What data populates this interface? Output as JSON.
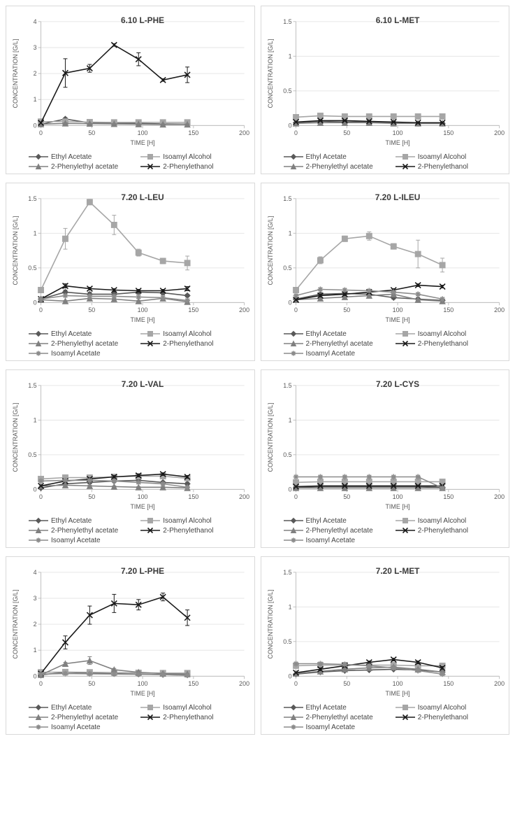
{
  "global": {
    "xlabel": "TIME [H]",
    "ylabel": "CONCENTRATION [G/L]",
    "label_fontsize": 9,
    "title_fontsize": 12,
    "title_weight": "bold",
    "tick_fontsize": 9,
    "background_color": "#ffffff",
    "border_color": "#d9d9d9",
    "axis_color": "#bfbfbf",
    "grid_color": "#e6e6e6",
    "text_color": "#595959",
    "xlim": [
      0,
      200
    ],
    "xtick_step": 50,
    "line_width": 1.6,
    "marker_size": 4,
    "legend_fontsize": 10
  },
  "series_defs": {
    "ethyl_acetate": {
      "label": "Ethyl Acetate",
      "color": "#595959",
      "marker": "diamond"
    },
    "isoamyl_alcohol": {
      "label": "Isoamyl Alcohol",
      "color": "#a6a6a6",
      "marker": "square"
    },
    "phenylethyl_acetate": {
      "label": "2-Phenylethyl acetate",
      "color": "#808080",
      "marker": "triangle"
    },
    "phenylethanol": {
      "label": "2-Phenylethanol",
      "color": "#1a1a1a",
      "marker": "x"
    },
    "isoamyl_acetate": {
      "label": "Isoamyl Acetate",
      "color": "#8c8c8c",
      "marker": "star"
    }
  },
  "charts": [
    {
      "id": "p610_phe",
      "title": "6.10 L-PHE",
      "ylim": [
        0,
        4
      ],
      "ytick_step": 1,
      "x": [
        0,
        24,
        48,
        72,
        96,
        120,
        144
      ],
      "series": [
        {
          "def": "ethyl_acetate",
          "y": [
            0.05,
            0.25,
            0.1,
            0.1,
            0.08,
            0.06,
            0.05
          ],
          "err": [
            0,
            0.05,
            0.03,
            0.02,
            0.02,
            0.02,
            0.02
          ]
        },
        {
          "def": "isoamyl_alcohol",
          "y": [
            0.15,
            0.15,
            0.13,
            0.12,
            0.12,
            0.12,
            0.12
          ],
          "err": [
            0,
            0.02,
            0.02,
            0.02,
            0.02,
            0.02,
            0.02
          ]
        },
        {
          "def": "phenylethyl_acetate",
          "y": [
            0.05,
            0.08,
            0.07,
            0.06,
            0.05,
            0.04,
            0.04
          ],
          "err": [
            0,
            0.02,
            0.02,
            0.02,
            0.02,
            0.02,
            0.02
          ]
        },
        {
          "def": "phenylethanol",
          "y": [
            0.1,
            2.02,
            2.2,
            3.1,
            2.55,
            1.75,
            1.95
          ],
          "err": [
            0,
            0.55,
            0.15,
            0.05,
            0.25,
            0.05,
            0.3
          ]
        }
      ],
      "legend_order": [
        "ethyl_acetate",
        "isoamyl_alcohol",
        "phenylethyl_acetate",
        "phenylethanol"
      ]
    },
    {
      "id": "p610_met",
      "title": "6.10 L-MET",
      "ylim": [
        0,
        1.5
      ],
      "ytick_step": 0.5,
      "x": [
        0,
        24,
        48,
        72,
        96,
        120,
        144
      ],
      "series": [
        {
          "def": "ethyl_acetate",
          "y": [
            0.04,
            0.06,
            0.05,
            0.05,
            0.04,
            0.03,
            0.03
          ],
          "err": [
            0,
            0.01,
            0.01,
            0.01,
            0.01,
            0.01,
            0.01
          ]
        },
        {
          "def": "isoamyl_alcohol",
          "y": [
            0.12,
            0.14,
            0.13,
            0.13,
            0.13,
            0.13,
            0.13
          ],
          "err": [
            0,
            0.02,
            0.02,
            0.02,
            0.02,
            0.02,
            0.02
          ]
        },
        {
          "def": "phenylethyl_acetate",
          "y": [
            0.03,
            0.04,
            0.04,
            0.04,
            0.03,
            0.03,
            0.03
          ],
          "err": [
            0,
            0.01,
            0.01,
            0.01,
            0.01,
            0.01,
            0.01
          ]
        },
        {
          "def": "phenylethanol",
          "y": [
            0.05,
            0.07,
            0.07,
            0.06,
            0.05,
            0.04,
            0.04
          ],
          "err": [
            0,
            0.01,
            0.01,
            0.01,
            0.01,
            0.01,
            0.01
          ]
        }
      ],
      "legend_order": [
        "ethyl_acetate",
        "isoamyl_alcohol",
        "phenylethyl_acetate",
        "phenylethanol"
      ]
    },
    {
      "id": "p720_leu",
      "title": "7.20 L-LEU",
      "ylim": [
        0,
        1.5
      ],
      "ytick_step": 0.5,
      "x": [
        0,
        24,
        48,
        72,
        96,
        120,
        144
      ],
      "series": [
        {
          "def": "ethyl_acetate",
          "y": [
            0.05,
            0.15,
            0.12,
            0.12,
            0.15,
            0.14,
            0.1
          ],
          "err": [
            0,
            0.03,
            0.03,
            0.03,
            0.03,
            0.03,
            0.02
          ]
        },
        {
          "def": "isoamyl_alcohol",
          "y": [
            0.18,
            0.92,
            1.45,
            1.12,
            0.72,
            0.6,
            0.57
          ],
          "err": [
            0,
            0.15,
            0.04,
            0.14,
            0.05,
            0.04,
            0.1
          ]
        },
        {
          "def": "phenylethyl_acetate",
          "y": [
            0.04,
            0.02,
            0.06,
            0.05,
            0.02,
            0.06,
            0.01
          ],
          "err": [
            0,
            0.01,
            0.01,
            0.01,
            0.01,
            0.01,
            0.01
          ]
        },
        {
          "def": "phenylethanol",
          "y": [
            0.05,
            0.24,
            0.2,
            0.18,
            0.17,
            0.17,
            0.2
          ],
          "err": [
            0,
            0.03,
            0.02,
            0.02,
            0.02,
            0.02,
            0.03
          ]
        },
        {
          "def": "isoamyl_acetate",
          "y": [
            0.05,
            0.1,
            0.09,
            0.09,
            0.08,
            0.07,
            0.03
          ],
          "err": [
            0,
            0.02,
            0.02,
            0.02,
            0.02,
            0.02,
            0.02
          ]
        }
      ],
      "legend_order": [
        "ethyl_acetate",
        "isoamyl_alcohol",
        "phenylethyl_acetate",
        "phenylethanol",
        "isoamyl_acetate"
      ]
    },
    {
      "id": "p720_ileu",
      "title": "7.20 L-ILEU",
      "ylim": [
        0,
        1.5
      ],
      "ytick_step": 0.5,
      "x": [
        0,
        24,
        48,
        72,
        96,
        120,
        144
      ],
      "series": [
        {
          "def": "ethyl_acetate",
          "y": [
            0.05,
            0.12,
            0.13,
            0.12,
            0.07,
            0.05,
            0.03
          ],
          "err": [
            0,
            0.02,
            0.02,
            0.02,
            0.02,
            0.02,
            0.01
          ]
        },
        {
          "def": "isoamyl_alcohol",
          "y": [
            0.18,
            0.61,
            0.92,
            0.96,
            0.81,
            0.7,
            0.54
          ],
          "err": [
            0,
            0.05,
            0.04,
            0.06,
            0.04,
            0.2,
            0.1
          ]
        },
        {
          "def": "phenylethyl_acetate",
          "y": [
            0.04,
            0.06,
            0.08,
            0.1,
            0.12,
            0.04,
            0.02
          ],
          "err": [
            0,
            0.01,
            0.01,
            0.01,
            0.01,
            0.01,
            0.01
          ]
        },
        {
          "def": "phenylethanol",
          "y": [
            0.04,
            0.1,
            0.12,
            0.15,
            0.18,
            0.25,
            0.23
          ],
          "err": [
            0,
            0.02,
            0.02,
            0.02,
            0.02,
            0.02,
            0.02
          ]
        },
        {
          "def": "isoamyl_acetate",
          "y": [
            0.1,
            0.19,
            0.18,
            0.17,
            0.15,
            0.12,
            0.05
          ],
          "err": [
            0,
            0.02,
            0.02,
            0.02,
            0.02,
            0.02,
            0.02
          ]
        }
      ],
      "legend_order": [
        "ethyl_acetate",
        "isoamyl_alcohol",
        "phenylethyl_acetate",
        "phenylethanol",
        "isoamyl_acetate"
      ]
    },
    {
      "id": "p720_val",
      "title": "7.20 L-VAL",
      "ylim": [
        0,
        1.5
      ],
      "ytick_step": 0.5,
      "x": [
        0,
        24,
        48,
        72,
        96,
        120,
        144
      ],
      "series": [
        {
          "def": "ethyl_acetate",
          "y": [
            0.02,
            0.08,
            0.1,
            0.12,
            0.13,
            0.1,
            0.08
          ],
          "err": [
            0,
            0.02,
            0.02,
            0.02,
            0.02,
            0.02,
            0.02
          ]
        },
        {
          "def": "isoamyl_alcohol",
          "y": [
            0.15,
            0.17,
            0.17,
            0.18,
            0.19,
            0.19,
            0.16
          ],
          "err": [
            0,
            0.02,
            0.02,
            0.02,
            0.02,
            0.02,
            0.02
          ]
        },
        {
          "def": "phenylethyl_acetate",
          "y": [
            0.05,
            0.06,
            0.05,
            0.04,
            0.03,
            0.03,
            0.02
          ],
          "err": [
            0,
            0.01,
            0.01,
            0.01,
            0.01,
            0.01,
            0.01
          ]
        },
        {
          "def": "phenylethanol",
          "y": [
            0.05,
            0.12,
            0.15,
            0.18,
            0.2,
            0.22,
            0.18
          ],
          "err": [
            0,
            0.02,
            0.02,
            0.02,
            0.02,
            0.02,
            0.02
          ]
        },
        {
          "def": "isoamyl_acetate",
          "y": [
            0.12,
            0.13,
            0.13,
            0.12,
            0.1,
            0.08,
            0.03
          ],
          "err": [
            0,
            0.01,
            0.01,
            0.01,
            0.01,
            0.01,
            0.01
          ]
        }
      ],
      "legend_order": [
        "ethyl_acetate",
        "isoamyl_alcohol",
        "phenylethyl_acetate",
        "phenylethanol",
        "isoamyl_acetate"
      ]
    },
    {
      "id": "p720_cys",
      "title": "7.20 L-CYS",
      "ylim": [
        0,
        1.5
      ],
      "ytick_step": 0.5,
      "x": [
        0,
        24,
        48,
        72,
        96,
        120,
        144
      ],
      "series": [
        {
          "def": "ethyl_acetate",
          "y": [
            0.03,
            0.04,
            0.04,
            0.04,
            0.04,
            0.04,
            0.03
          ],
          "err": [
            0,
            0.01,
            0.01,
            0.01,
            0.01,
            0.01,
            0.01
          ]
        },
        {
          "def": "isoamyl_alcohol",
          "y": [
            0.1,
            0.11,
            0.11,
            0.11,
            0.11,
            0.11,
            0.11
          ],
          "err": [
            0,
            0.01,
            0.01,
            0.01,
            0.01,
            0.01,
            0.01
          ]
        },
        {
          "def": "phenylethyl_acetate",
          "y": [
            0.02,
            0.02,
            0.02,
            0.02,
            0.02,
            0.02,
            0.02
          ],
          "err": [
            0,
            0.01,
            0.01,
            0.01,
            0.01,
            0.01,
            0.01
          ]
        },
        {
          "def": "phenylethanol",
          "y": [
            0.04,
            0.05,
            0.05,
            0.05,
            0.05,
            0.05,
            0.05
          ],
          "err": [
            0,
            0.01,
            0.01,
            0.01,
            0.01,
            0.01,
            0.01
          ]
        },
        {
          "def": "isoamyl_acetate",
          "y": [
            0.18,
            0.18,
            0.18,
            0.18,
            0.18,
            0.18,
            0.02
          ],
          "err": [
            0,
            0.01,
            0.01,
            0.01,
            0.01,
            0.01,
            0.01
          ]
        }
      ],
      "legend_order": [
        "ethyl_acetate",
        "isoamyl_alcohol",
        "phenylethyl_acetate",
        "phenylethanol",
        "isoamyl_acetate"
      ]
    },
    {
      "id": "p720_phe",
      "title": "7.20 L-PHE",
      "ylim": [
        0,
        4
      ],
      "ytick_step": 1,
      "x": [
        0,
        24,
        48,
        72,
        96,
        120,
        144
      ],
      "series": [
        {
          "def": "ethyl_acetate",
          "y": [
            0.05,
            0.15,
            0.12,
            0.1,
            0.08,
            0.06,
            0.05
          ],
          "err": [
            0,
            0.02,
            0.02,
            0.02,
            0.02,
            0.02,
            0.02
          ]
        },
        {
          "def": "isoamyl_alcohol",
          "y": [
            0.15,
            0.16,
            0.15,
            0.14,
            0.13,
            0.12,
            0.12
          ],
          "err": [
            0,
            0.02,
            0.02,
            0.02,
            0.02,
            0.02,
            0.02
          ]
        },
        {
          "def": "phenylethyl_acetate",
          "y": [
            0.05,
            0.48,
            0.6,
            0.25,
            0.15,
            0.1,
            0.08
          ],
          "err": [
            0,
            0.05,
            0.15,
            0.05,
            0.03,
            0.03,
            0.02
          ]
        },
        {
          "def": "phenylethanol",
          "y": [
            0.1,
            1.3,
            2.35,
            2.8,
            2.75,
            3.05,
            2.25
          ],
          "err": [
            0,
            0.25,
            0.35,
            0.35,
            0.2,
            0.15,
            0.3
          ]
        },
        {
          "def": "isoamyl_acetate",
          "y": [
            0.08,
            0.1,
            0.09,
            0.08,
            0.07,
            0.06,
            0.03
          ],
          "err": [
            0,
            0.01,
            0.01,
            0.01,
            0.01,
            0.01,
            0.01
          ]
        }
      ],
      "legend_order": [
        "ethyl_acetate",
        "isoamyl_alcohol",
        "phenylethyl_acetate",
        "phenylethanol",
        "isoamyl_acetate"
      ]
    },
    {
      "id": "p720_met",
      "title": "7.20 L-MET",
      "ylim": [
        0,
        1.5
      ],
      "ytick_step": 0.5,
      "x": [
        0,
        24,
        48,
        72,
        96,
        120,
        144
      ],
      "series": [
        {
          "def": "ethyl_acetate",
          "y": [
            0.03,
            0.06,
            0.08,
            0.09,
            0.1,
            0.09,
            0.06
          ],
          "err": [
            0,
            0.01,
            0.01,
            0.01,
            0.01,
            0.01,
            0.01
          ]
        },
        {
          "def": "isoamyl_alcohol",
          "y": [
            0.15,
            0.16,
            0.16,
            0.16,
            0.16,
            0.15,
            0.15
          ],
          "err": [
            0,
            0.02,
            0.02,
            0.02,
            0.02,
            0.02,
            0.02
          ]
        },
        {
          "def": "phenylethyl_acetate",
          "y": [
            0.04,
            0.07,
            0.1,
            0.12,
            0.13,
            0.1,
            0.06
          ],
          "err": [
            0,
            0.01,
            0.01,
            0.02,
            0.02,
            0.01,
            0.01
          ]
        },
        {
          "def": "phenylethanol",
          "y": [
            0.05,
            0.1,
            0.15,
            0.2,
            0.24,
            0.2,
            0.12
          ],
          "err": [
            0,
            0.02,
            0.02,
            0.02,
            0.02,
            0.02,
            0.02
          ]
        },
        {
          "def": "isoamyl_acetate",
          "y": [
            0.18,
            0.18,
            0.17,
            0.15,
            0.12,
            0.08,
            0.03
          ],
          "err": [
            0,
            0.01,
            0.01,
            0.01,
            0.01,
            0.01,
            0.01
          ]
        }
      ],
      "legend_order": [
        "ethyl_acetate",
        "isoamyl_alcohol",
        "phenylethyl_acetate",
        "phenylethanol",
        "isoamyl_acetate"
      ]
    }
  ]
}
